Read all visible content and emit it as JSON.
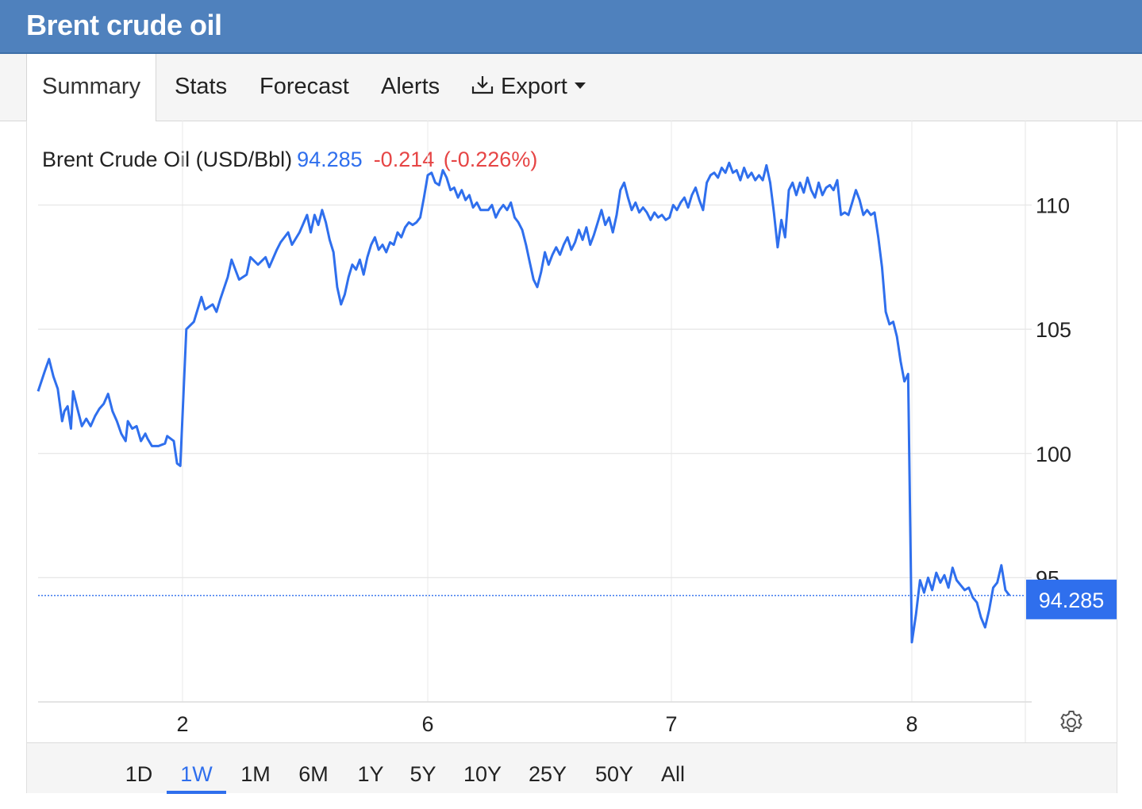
{
  "header": {
    "title": "Brent crude oil"
  },
  "tabs": [
    {
      "label": "Summary",
      "active": true
    },
    {
      "label": "Stats"
    },
    {
      "label": "Forecast"
    },
    {
      "label": "Alerts"
    },
    {
      "label": "Export",
      "icon": "download-icon",
      "dropdown": true
    }
  ],
  "quote": {
    "name": "Brent Crude Oil (USD/Bbl)",
    "last": "94.285",
    "change": "-0.214",
    "change_pct": "(-0.226%)"
  },
  "ranges": [
    {
      "label": "1D"
    },
    {
      "label": "1W",
      "active": true
    },
    {
      "label": "1M"
    },
    {
      "label": "6M"
    },
    {
      "label": "1Y"
    },
    {
      "label": "5Y"
    },
    {
      "label": "10Y"
    },
    {
      "label": "25Y"
    },
    {
      "label": "50Y"
    },
    {
      "label": "All"
    }
  ],
  "colors": {
    "line": "#2f6fed",
    "header": "#4f81bd",
    "negative": "#e64545"
  },
  "chart_data": {
    "type": "line",
    "ylim": [
      90,
      113.4
    ],
    "yticks": [
      95,
      100,
      105,
      110
    ],
    "x_ticks": [
      "2",
      "6",
      "7",
      "8"
    ],
    "last_value_label": "94.285",
    "last_value": 94.285,
    "grid": true,
    "series": [
      {
        "points": [
          [
            0.0,
            102.5
          ],
          [
            0.03,
            103.3
          ],
          [
            0.05,
            103.8
          ],
          [
            0.07,
            103.1
          ],
          [
            0.09,
            102.6
          ],
          [
            0.11,
            101.3
          ],
          [
            0.12,
            101.7
          ],
          [
            0.135,
            101.9
          ],
          [
            0.15,
            101.0
          ],
          [
            0.16,
            102.5
          ],
          [
            0.18,
            101.8
          ],
          [
            0.2,
            101.1
          ],
          [
            0.22,
            101.4
          ],
          [
            0.24,
            101.1
          ],
          [
            0.26,
            101.5
          ],
          [
            0.28,
            101.8
          ],
          [
            0.3,
            102.0
          ],
          [
            0.32,
            102.4
          ],
          [
            0.34,
            101.7
          ],
          [
            0.36,
            101.3
          ],
          [
            0.38,
            100.8
          ],
          [
            0.4,
            100.5
          ],
          [
            0.41,
            101.3
          ],
          [
            0.43,
            101.0
          ],
          [
            0.45,
            101.1
          ],
          [
            0.47,
            100.5
          ],
          [
            0.49,
            100.8
          ],
          [
            0.5,
            100.6
          ],
          [
            0.52,
            100.3
          ],
          [
            0.55,
            100.3
          ],
          [
            0.58,
            100.4
          ],
          [
            0.59,
            100.7
          ],
          [
            0.62,
            100.5
          ],
          [
            0.635,
            99.6
          ],
          [
            0.65,
            99.5
          ],
          [
            0.67,
            105.0
          ],
          [
            0.69,
            105.3
          ],
          [
            0.71,
            106.3
          ],
          [
            0.72,
            105.8
          ],
          [
            0.74,
            106.0
          ],
          [
            0.75,
            105.7
          ],
          [
            0.76,
            106.2
          ],
          [
            0.78,
            107.1
          ],
          [
            0.79,
            107.8
          ],
          [
            0.81,
            107.0
          ],
          [
            0.83,
            107.2
          ],
          [
            0.84,
            107.9
          ],
          [
            0.86,
            107.6
          ],
          [
            0.88,
            107.9
          ],
          [
            0.89,
            107.5
          ],
          [
            0.91,
            108.2
          ],
          [
            0.92,
            108.5
          ],
          [
            0.94,
            108.9
          ],
          [
            0.95,
            108.4
          ],
          [
            0.97,
            108.9
          ],
          [
            0.99,
            109.6
          ],
          [
            1.0,
            108.9
          ],
          [
            1.01,
            109.6
          ],
          [
            1.02,
            109.2
          ],
          [
            1.03,
            109.8
          ],
          [
            1.04,
            109.3
          ],
          [
            1.05,
            108.6
          ],
          [
            1.06,
            108.1
          ],
          [
            1.07,
            106.7
          ],
          [
            1.08,
            106.0
          ],
          [
            1.09,
            106.4
          ],
          [
            1.1,
            107.1
          ],
          [
            1.11,
            107.6
          ],
          [
            1.12,
            107.4
          ],
          [
            1.13,
            107.8
          ],
          [
            1.14,
            107.2
          ],
          [
            1.15,
            107.9
          ],
          [
            1.16,
            108.4
          ],
          [
            1.17,
            108.7
          ],
          [
            1.18,
            108.2
          ],
          [
            1.19,
            108.4
          ],
          [
            1.2,
            108.1
          ],
          [
            1.21,
            108.5
          ],
          [
            1.22,
            108.4
          ],
          [
            1.23,
            108.9
          ],
          [
            1.24,
            108.7
          ],
          [
            1.25,
            109.1
          ],
          [
            1.26,
            109.3
          ],
          [
            1.27,
            109.2
          ],
          [
            1.28,
            109.3
          ],
          [
            1.29,
            109.5
          ],
          [
            1.3,
            110.3
          ],
          [
            1.31,
            111.2
          ],
          [
            1.32,
            111.3
          ],
          [
            1.33,
            110.9
          ],
          [
            1.34,
            110.8
          ],
          [
            1.35,
            111.4
          ],
          [
            1.36,
            111.1
          ],
          [
            1.37,
            110.6
          ],
          [
            1.38,
            110.7
          ],
          [
            1.39,
            110.3
          ],
          [
            1.4,
            110.6
          ],
          [
            1.41,
            110.2
          ],
          [
            1.42,
            110.4
          ],
          [
            1.43,
            109.9
          ],
          [
            1.44,
            110.1
          ],
          [
            1.45,
            109.8
          ],
          [
            1.46,
            109.8
          ],
          [
            1.47,
            109.8
          ],
          [
            1.48,
            110.0
          ],
          [
            1.49,
            109.5
          ],
          [
            1.5,
            109.8
          ],
          [
            1.51,
            110.0
          ],
          [
            1.52,
            109.8
          ],
          [
            1.53,
            110.1
          ],
          [
            1.54,
            109.5
          ],
          [
            1.55,
            109.3
          ],
          [
            1.56,
            109.0
          ],
          [
            1.57,
            108.4
          ],
          [
            1.58,
            107.7
          ],
          [
            1.59,
            107.0
          ],
          [
            1.6,
            106.7
          ],
          [
            1.61,
            107.3
          ],
          [
            1.62,
            108.1
          ],
          [
            1.63,
            107.6
          ],
          [
            1.64,
            108.0
          ],
          [
            1.65,
            108.3
          ],
          [
            1.66,
            108.0
          ],
          [
            1.67,
            108.4
          ],
          [
            1.68,
            108.7
          ],
          [
            1.69,
            108.2
          ],
          [
            1.7,
            108.5
          ],
          [
            1.71,
            109.0
          ],
          [
            1.72,
            108.6
          ],
          [
            1.73,
            109.1
          ],
          [
            1.74,
            108.4
          ],
          [
            1.75,
            108.8
          ],
          [
            1.76,
            109.3
          ],
          [
            1.77,
            109.8
          ],
          [
            1.78,
            109.2
          ],
          [
            1.79,
            109.5
          ],
          [
            1.8,
            108.9
          ],
          [
            1.81,
            109.6
          ],
          [
            1.82,
            110.6
          ],
          [
            1.83,
            110.9
          ],
          [
            1.84,
            110.3
          ],
          [
            1.85,
            109.8
          ],
          [
            1.86,
            110.1
          ],
          [
            1.87,
            109.7
          ],
          [
            1.88,
            109.9
          ],
          [
            1.89,
            109.7
          ],
          [
            1.9,
            109.4
          ],
          [
            1.91,
            109.7
          ],
          [
            1.92,
            109.5
          ],
          [
            1.93,
            109.6
          ],
          [
            1.94,
            109.4
          ],
          [
            1.95,
            109.5
          ],
          [
            1.96,
            110.0
          ],
          [
            1.97,
            109.8
          ],
          [
            1.98,
            110.1
          ],
          [
            1.99,
            110.3
          ],
          [
            2.0,
            109.9
          ],
          [
            2.01,
            110.4
          ],
          [
            2.02,
            110.7
          ],
          [
            2.03,
            110.2
          ],
          [
            2.04,
            109.8
          ],
          [
            2.05,
            110.9
          ],
          [
            2.06,
            111.2
          ],
          [
            2.07,
            111.3
          ],
          [
            2.08,
            111.1
          ],
          [
            2.09,
            111.5
          ],
          [
            2.1,
            111.3
          ],
          [
            2.11,
            111.7
          ],
          [
            2.12,
            111.3
          ],
          [
            2.13,
            111.4
          ],
          [
            2.14,
            111.0
          ],
          [
            2.15,
            111.5
          ],
          [
            2.16,
            111.1
          ],
          [
            2.17,
            111.3
          ],
          [
            2.18,
            111.0
          ],
          [
            2.19,
            111.2
          ],
          [
            2.2,
            111.0
          ],
          [
            2.21,
            111.6
          ],
          [
            2.22,
            110.9
          ],
          [
            2.23,
            109.7
          ],
          [
            2.24,
            108.3
          ],
          [
            2.25,
            109.4
          ],
          [
            2.26,
            108.7
          ],
          [
            2.27,
            110.6
          ],
          [
            2.28,
            110.9
          ],
          [
            2.29,
            110.4
          ],
          [
            2.3,
            110.9
          ],
          [
            2.31,
            110.5
          ],
          [
            2.32,
            111.1
          ],
          [
            2.33,
            110.6
          ],
          [
            2.34,
            110.3
          ],
          [
            2.35,
            110.9
          ],
          [
            2.36,
            110.4
          ],
          [
            2.37,
            110.7
          ],
          [
            2.38,
            110.8
          ],
          [
            2.39,
            110.6
          ],
          [
            2.4,
            111.0
          ],
          [
            2.41,
            109.6
          ],
          [
            2.42,
            109.7
          ],
          [
            2.43,
            109.6
          ],
          [
            2.44,
            110.1
          ],
          [
            2.45,
            110.6
          ],
          [
            2.46,
            110.2
          ],
          [
            2.47,
            109.6
          ],
          [
            2.48,
            109.8
          ],
          [
            2.49,
            109.6
          ],
          [
            2.5,
            109.7
          ],
          [
            2.51,
            108.7
          ],
          [
            2.52,
            107.5
          ],
          [
            2.53,
            105.7
          ],
          [
            2.54,
            105.2
          ],
          [
            2.55,
            105.3
          ],
          [
            2.56,
            104.7
          ],
          [
            2.57,
            103.7
          ],
          [
            2.58,
            102.9
          ],
          [
            2.59,
            103.2
          ],
          [
            2.6,
            92.4
          ],
          [
            2.61,
            93.5
          ],
          [
            2.62,
            94.9
          ],
          [
            2.63,
            94.4
          ],
          [
            2.64,
            95.0
          ],
          [
            2.65,
            94.5
          ],
          [
            2.66,
            95.2
          ],
          [
            2.67,
            94.8
          ],
          [
            2.68,
            95.1
          ],
          [
            2.69,
            94.6
          ],
          [
            2.7,
            95.4
          ],
          [
            2.71,
            94.9
          ],
          [
            2.72,
            94.7
          ],
          [
            2.73,
            94.5
          ],
          [
            2.74,
            94.6
          ],
          [
            2.75,
            94.2
          ],
          [
            2.76,
            94.0
          ],
          [
            2.77,
            93.4
          ],
          [
            2.78,
            93.0
          ],
          [
            2.79,
            93.7
          ],
          [
            2.8,
            94.6
          ],
          [
            2.81,
            94.8
          ],
          [
            2.82,
            95.5
          ],
          [
            2.83,
            94.5
          ],
          [
            2.84,
            94.285
          ]
        ]
      }
    ]
  }
}
